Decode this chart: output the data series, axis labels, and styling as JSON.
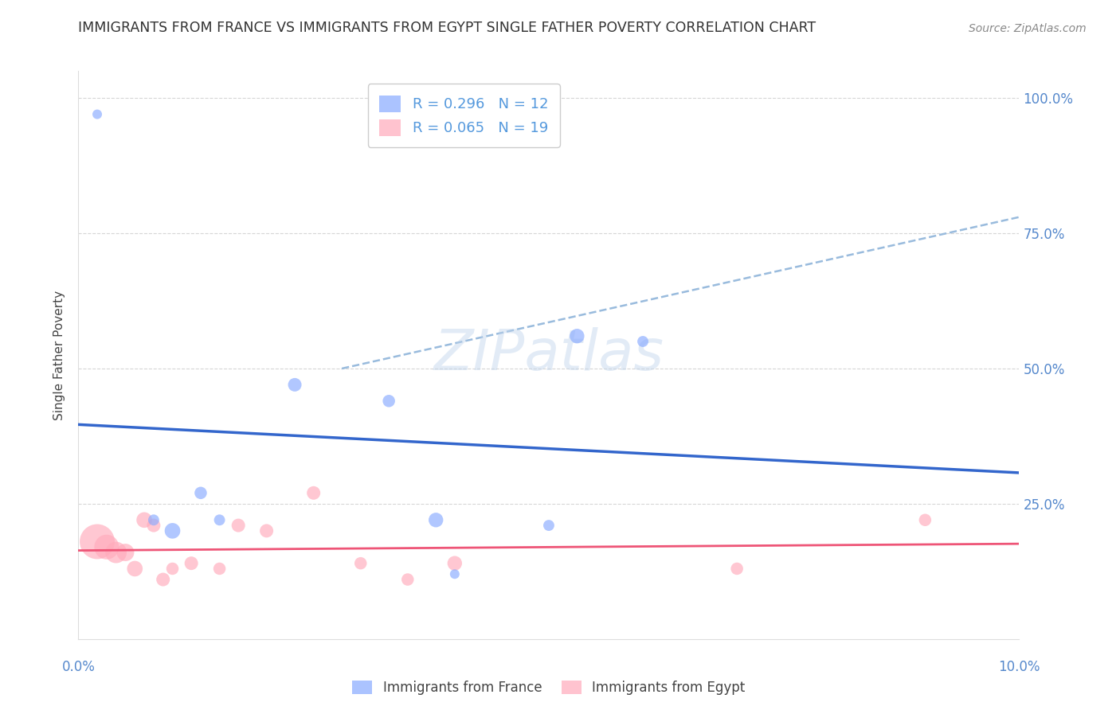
{
  "title": "IMMIGRANTS FROM FRANCE VS IMMIGRANTS FROM EGYPT SINGLE FATHER POVERTY CORRELATION CHART",
  "source": "Source: ZipAtlas.com",
  "ylabel": "Single Father Poverty",
  "watermark": "ZIPatlas",
  "france_R": 0.296,
  "france_N": 12,
  "egypt_R": 0.065,
  "egypt_N": 19,
  "france_color": "#88aaff",
  "egypt_color": "#ffaabb",
  "france_line_color": "#3366cc",
  "egypt_line_color": "#ee5577",
  "dashed_line_color": "#99bbdd",
  "xlim": [
    0.0,
    0.1
  ],
  "ylim": [
    0.0,
    1.05
  ],
  "right_ytick_vals": [
    0.25,
    0.5,
    0.75,
    1.0
  ],
  "right_ytick_labels": [
    "25.0%",
    "50.0%",
    "75.0%",
    "100.0%"
  ],
  "france_points_x": [
    0.002,
    0.008,
    0.01,
    0.013,
    0.015,
    0.023,
    0.033,
    0.038,
    0.04,
    0.05,
    0.053,
    0.06
  ],
  "france_points_y": [
    0.97,
    0.22,
    0.2,
    0.27,
    0.22,
    0.47,
    0.44,
    0.22,
    0.12,
    0.21,
    0.56,
    0.55
  ],
  "france_sizes": [
    30,
    40,
    80,
    50,
    40,
    60,
    50,
    70,
    30,
    40,
    70,
    40
  ],
  "egypt_points_x": [
    0.002,
    0.003,
    0.004,
    0.005,
    0.006,
    0.007,
    0.008,
    0.009,
    0.01,
    0.012,
    0.015,
    0.017,
    0.02,
    0.025,
    0.03,
    0.035,
    0.04,
    0.07,
    0.09
  ],
  "egypt_points_y": [
    0.18,
    0.17,
    0.16,
    0.16,
    0.13,
    0.22,
    0.21,
    0.11,
    0.13,
    0.14,
    0.13,
    0.21,
    0.2,
    0.27,
    0.14,
    0.11,
    0.14,
    0.13,
    0.22
  ],
  "egypt_sizes": [
    400,
    200,
    150,
    100,
    80,
    80,
    60,
    60,
    50,
    60,
    50,
    60,
    60,
    60,
    50,
    50,
    70,
    50,
    50
  ]
}
